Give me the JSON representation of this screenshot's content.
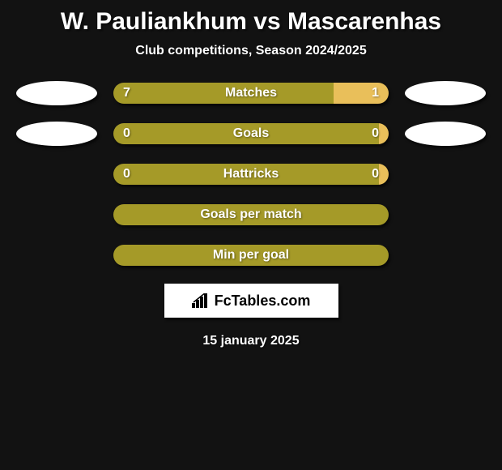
{
  "title": "W. Pauliankhum vs Mascarenhas",
  "subtitle": "Club competitions, Season 2024/2025",
  "colors": {
    "left": "#a59a28",
    "right": "#e9bf5a",
    "background": "#121212",
    "ellipse": "#ffffff"
  },
  "rows": [
    {
      "label": "Matches",
      "left_val": "7",
      "right_val": "1",
      "left_pct": 80,
      "has_right": true,
      "show_ellipses": true
    },
    {
      "label": "Goals",
      "left_val": "0",
      "right_val": "0",
      "left_pct": 97,
      "has_right": true,
      "show_ellipses": true
    },
    {
      "label": "Hattricks",
      "left_val": "0",
      "right_val": "0",
      "left_pct": 97,
      "has_right": true,
      "show_ellipses": false
    },
    {
      "label": "Goals per match",
      "left_val": "",
      "right_val": "",
      "left_pct": 100,
      "has_right": false,
      "show_ellipses": false
    },
    {
      "label": "Min per goal",
      "left_val": "",
      "right_val": "",
      "left_pct": 100,
      "has_right": false,
      "show_ellipses": false
    }
  ],
  "logo_text": "FcTables.com",
  "date": "15 january 2025"
}
